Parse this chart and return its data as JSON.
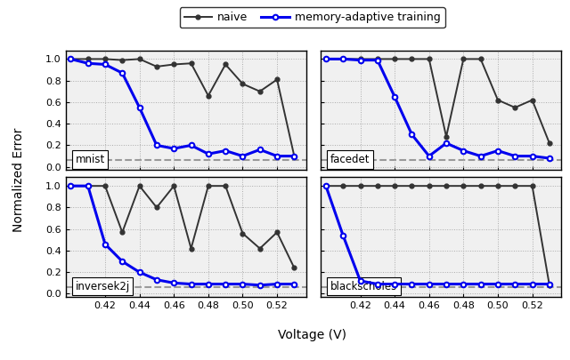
{
  "voltages": [
    0.4,
    0.41,
    0.42,
    0.43,
    0.44,
    0.45,
    0.46,
    0.47,
    0.48,
    0.49,
    0.5,
    0.51,
    0.52,
    0.53
  ],
  "mnist": {
    "naive": [
      1.0,
      1.0,
      1.0,
      0.99,
      1.0,
      0.93,
      0.95,
      0.96,
      0.66,
      0.95,
      0.77,
      0.7,
      0.81,
      0.1
    ],
    "adaptive": [
      1.0,
      0.96,
      0.95,
      0.87,
      0.55,
      0.2,
      0.17,
      0.2,
      0.12,
      0.15,
      0.1,
      0.16,
      0.1,
      0.1
    ],
    "threshold": 0.065
  },
  "facedet": {
    "naive": [
      1.0,
      1.0,
      1.0,
      1.0,
      1.0,
      1.0,
      1.0,
      0.28,
      1.0,
      1.0,
      0.62,
      0.55,
      0.62,
      0.22
    ],
    "adaptive": [
      1.0,
      1.0,
      0.99,
      0.99,
      0.65,
      0.3,
      0.1,
      0.22,
      0.15,
      0.1,
      0.15,
      0.1,
      0.1,
      0.08
    ],
    "threshold": 0.065
  },
  "inversek2j": {
    "naive": [
      1.0,
      1.0,
      1.0,
      0.57,
      1.0,
      0.8,
      1.0,
      0.42,
      1.0,
      1.0,
      0.56,
      0.42,
      0.57,
      0.24
    ],
    "adaptive": [
      1.0,
      1.0,
      0.46,
      0.3,
      0.2,
      0.13,
      0.1,
      0.09,
      0.09,
      0.09,
      0.09,
      0.08,
      0.09,
      0.09
    ],
    "threshold": 0.065
  },
  "blackscholes": {
    "naive": [
      1.0,
      1.0,
      1.0,
      1.0,
      1.0,
      1.0,
      1.0,
      1.0,
      1.0,
      1.0,
      1.0,
      1.0,
      1.0,
      0.08
    ],
    "adaptive": [
      1.0,
      0.54,
      0.12,
      0.09,
      0.09,
      0.09,
      0.09,
      0.09,
      0.09,
      0.09,
      0.09,
      0.09,
      0.09,
      0.09
    ],
    "threshold": 0.065
  },
  "naive_color": "#333333",
  "adaptive_color": "#0000ee",
  "threshold_color": "#999999",
  "xlabel": "Voltage (V)",
  "ylabel": "Normalized Error",
  "xticks": [
    0.42,
    0.44,
    0.46,
    0.48,
    0.5,
    0.52
  ],
  "xlim": [
    0.397,
    0.537
  ],
  "ylim": [
    -0.03,
    1.08
  ],
  "bg_color": "#f0f0f0"
}
